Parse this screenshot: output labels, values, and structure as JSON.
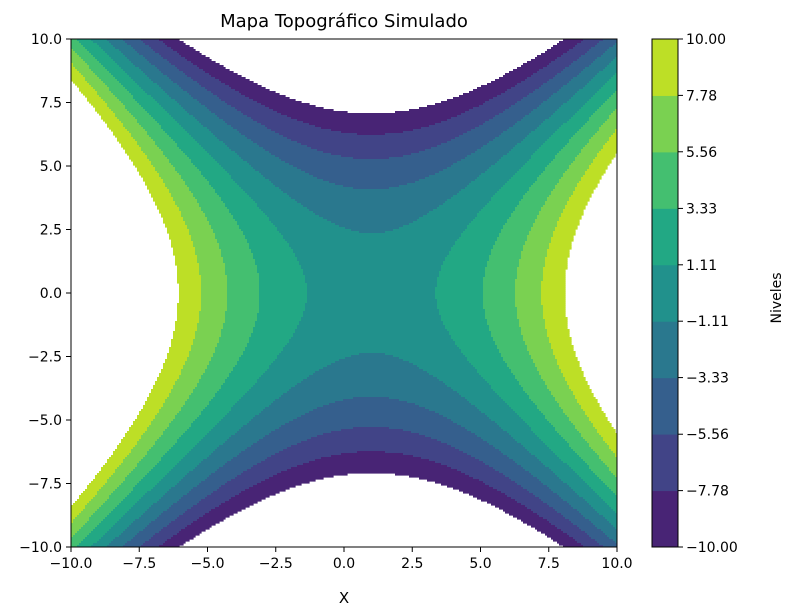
{
  "chart_data": {
    "type": "contourf",
    "title": "Mapa Topográfico Simulado",
    "xlabel": "X",
    "ylabel": "",
    "xlim": [
      -10,
      10
    ],
    "ylim": [
      -10,
      10
    ],
    "x_ticks": [
      -10,
      -7.5,
      -5,
      -2.5,
      0,
      2.5,
      5,
      7.5,
      10
    ],
    "y_ticks": [
      -10,
      -7.5,
      -5,
      -2.5,
      0,
      2.5,
      5,
      7.5,
      10
    ],
    "x_tick_labels": [
      "−10.0",
      "−7.5",
      "−5.0",
      "−2.5",
      "0.0",
      "2.5",
      "5.0",
      "7.5",
      "10.0"
    ],
    "y_tick_labels": [
      "−10.0",
      "−7.5",
      "−5.0",
      "−2.5",
      "0.0",
      "2.5",
      "5.0",
      "7.5",
      "10.0"
    ],
    "saddle_center": [
      1,
      0
    ],
    "surface_scale": 0.2,
    "levels": [
      -10,
      -7.78,
      -5.56,
      -3.33,
      -1.11,
      1.11,
      3.33,
      5.56,
      7.78,
      10
    ],
    "colorbar": {
      "label": "Niveles",
      "tick_labels": [
        "10.00",
        "7.78",
        "5.56",
        "3.33",
        "1.11",
        "−1.11",
        "−3.33",
        "−5.56",
        "−7.78",
        "−10.00"
      ]
    },
    "colors": [
      "#482475",
      "#414487",
      "#355f8d",
      "#2a788e",
      "#21918c",
      "#22a884",
      "#44bf70",
      "#7ad151",
      "#bddf26"
    ],
    "grid": false,
    "legend": "none"
  }
}
